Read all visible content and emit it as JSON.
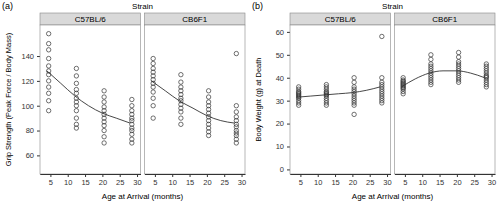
{
  "chart_data": [
    {
      "type": "scatter",
      "panel": "(a)",
      "title": "Strain",
      "xlabel": "Age at Arrival (months)",
      "ylabel": "Grip Strength (Peak Force / Body Mass)",
      "xlim": [
        2,
        31
      ],
      "xticks": [
        5,
        10,
        15,
        20,
        25,
        30
      ],
      "ylim": [
        45,
        165
      ],
      "yticks": [
        60,
        80,
        100,
        120,
        140
      ],
      "grid": false,
      "facets": [
        {
          "name": "C57BL/6",
          "series": [
            {
              "type": "scatter",
              "marker": "open-circle",
              "color": "#333333",
              "x": [
                4.5,
                4.5,
                4.5,
                4.5,
                4.5,
                4.5,
                4.5,
                4.5,
                4.5,
                4.5,
                4.5,
                4.5,
                12.5,
                12.5,
                12.5,
                12.5,
                12.5,
                12.5,
                12.5,
                12.5,
                12.5,
                12.5,
                12.5,
                12.5,
                20.5,
                20.5,
                20.5,
                20.5,
                20.5,
                20.5,
                20.5,
                20.5,
                20.5,
                20.5,
                20.5,
                20.5,
                28.5,
                28.5,
                28.5,
                28.5,
                28.5,
                28.5,
                28.5,
                28.5,
                28.5,
                28.5,
                28.5,
                28.5
              ],
              "values": [
                158,
                150,
                145,
                138,
                132,
                128,
                125,
                120,
                115,
                110,
                104,
                96,
                130,
                124,
                118,
                113,
                110,
                106,
                103,
                100,
                96,
                90,
                85,
                82,
                112,
                107,
                103,
                99,
                96,
                93,
                90,
                87,
                84,
                80,
                75,
                70,
                105,
                100,
                96,
                93,
                90,
                88,
                85,
                82,
                80,
                77,
                73,
                70
              ]
            },
            {
              "type": "line",
              "line_style": "solid",
              "color": "#333333",
              "x": [
                4,
                8,
                12,
                16,
                20,
                24,
                28
              ],
              "values": [
                128,
                118,
                108,
                100,
                94,
                90,
                86
              ]
            }
          ]
        },
        {
          "name": "CB6F1",
          "series": [
            {
              "type": "scatter",
              "marker": "open-circle",
              "color": "#333333",
              "x": [
                4.5,
                4.5,
                4.5,
                4.5,
                4.5,
                4.5,
                4.5,
                4.5,
                4.5,
                4.5,
                4.5,
                4.5,
                12.5,
                12.5,
                12.5,
                12.5,
                12.5,
                12.5,
                12.5,
                12.5,
                12.5,
                12.5,
                12.5,
                12.5,
                20.5,
                20.5,
                20.5,
                20.5,
                20.5,
                20.5,
                20.5,
                20.5,
                20.5,
                20.5,
                20.5,
                20.5,
                28.5,
                28.5,
                28.5,
                28.5,
                28.5,
                28.5,
                28.5,
                28.5,
                28.5,
                28.5,
                28.5,
                28.5
              ],
              "values": [
                138,
                134,
                130,
                127,
                124,
                121,
                118,
                115,
                111,
                106,
                100,
                90,
                125,
                119,
                115,
                112,
                109,
                106,
                104,
                101,
                98,
                95,
                90,
                85,
                112,
                107,
                103,
                100,
                97,
                94,
                91,
                88,
                85,
                82,
                79,
                76,
                142,
                100,
                95,
                91,
                88,
                85,
                83,
                80,
                78,
                76,
                73,
                70
              ]
            },
            {
              "type": "line",
              "line_style": "solid",
              "color": "#333333",
              "x": [
                4,
                8,
                12,
                16,
                20,
                24,
                28
              ],
              "values": [
                120,
                112,
                104,
                98,
                92,
                88,
                86
              ]
            }
          ]
        }
      ]
    },
    {
      "type": "scatter",
      "panel": "(b)",
      "title": "Strain",
      "xlabel": "Age at Arrival (months)",
      "ylabel": "Body Weight (g) at Death",
      "xlim": [
        2,
        31
      ],
      "xticks": [
        5,
        10,
        15,
        20,
        25,
        30
      ],
      "ylim": [
        -2,
        63
      ],
      "yticks": [
        0,
        10,
        20,
        30,
        40,
        50,
        60
      ],
      "grid": false,
      "facets": [
        {
          "name": "C57BL/6",
          "series": [
            {
              "type": "scatter",
              "marker": "open-circle",
              "color": "#333333",
              "x": [
                4.5,
                4.5,
                4.5,
                4.5,
                4.5,
                4.5,
                4.5,
                4.5,
                4.5,
                4.5,
                4.5,
                4.5,
                12.5,
                12.5,
                12.5,
                12.5,
                12.5,
                12.5,
                12.5,
                12.5,
                12.5,
                12.5,
                12.5,
                12.5,
                20.5,
                20.5,
                20.5,
                20.5,
                20.5,
                20.5,
                20.5,
                20.5,
                20.5,
                20.5,
                20.5,
                20.5,
                28.5,
                28.5,
                28.5,
                28.5,
                28.5,
                28.5,
                28.5,
                28.5,
                28.5,
                28.5,
                28.5,
                28.5
              ],
              "values": [
                36,
                35,
                34,
                33.5,
                33,
                32.5,
                32,
                31.5,
                31,
                30,
                29,
                28,
                37,
                36,
                35,
                34,
                33.5,
                33,
                32.5,
                32,
                31,
                30,
                29,
                28,
                40,
                38,
                36,
                35,
                34,
                33,
                32,
                31,
                30,
                29,
                28,
                24,
                58,
                40,
                38,
                37,
                36,
                35,
                34,
                33,
                32,
                31,
                30,
                29
              ]
            },
            {
              "type": "line",
              "line_style": "solid",
              "color": "#333333",
              "x": [
                4,
                8,
                12,
                16,
                20,
                24,
                28
              ],
              "values": [
                31.5,
                32,
                32.5,
                33,
                33.5,
                34.5,
                36
              ]
            }
          ]
        },
        {
          "name": "CB6F1",
          "series": [
            {
              "type": "scatter",
              "marker": "open-circle",
              "color": "#333333",
              "x": [
                4.5,
                4.5,
                4.5,
                4.5,
                4.5,
                4.5,
                4.5,
                4.5,
                4.5,
                4.5,
                4.5,
                4.5,
                12.5,
                12.5,
                12.5,
                12.5,
                12.5,
                12.5,
                12.5,
                12.5,
                12.5,
                12.5,
                12.5,
                12.5,
                20.5,
                20.5,
                20.5,
                20.5,
                20.5,
                20.5,
                20.5,
                20.5,
                20.5,
                20.5,
                20.5,
                20.5,
                28.5,
                28.5,
                28.5,
                28.5,
                28.5,
                28.5,
                28.5,
                28.5,
                28.5,
                28.5,
                28.5,
                28.5
              ],
              "values": [
                40,
                39,
                38.5,
                38,
                37.5,
                37,
                36.5,
                36,
                35.5,
                35,
                34,
                33,
                50,
                48,
                46,
                45,
                44,
                43,
                42,
                41,
                40,
                39,
                38,
                37,
                51,
                49,
                47,
                46,
                45,
                44,
                43,
                42,
                41,
                40,
                39,
                38,
                46,
                45,
                44,
                43,
                42,
                41,
                40.5,
                40,
                39,
                38,
                37,
                36
              ]
            },
            {
              "type": "line",
              "line_style": "solid",
              "color": "#333333",
              "x": [
                4,
                8,
                12,
                16,
                20,
                24,
                28
              ],
              "values": [
                36,
                39.5,
                42,
                43,
                43,
                42,
                40
              ]
            }
          ]
        }
      ]
    }
  ]
}
